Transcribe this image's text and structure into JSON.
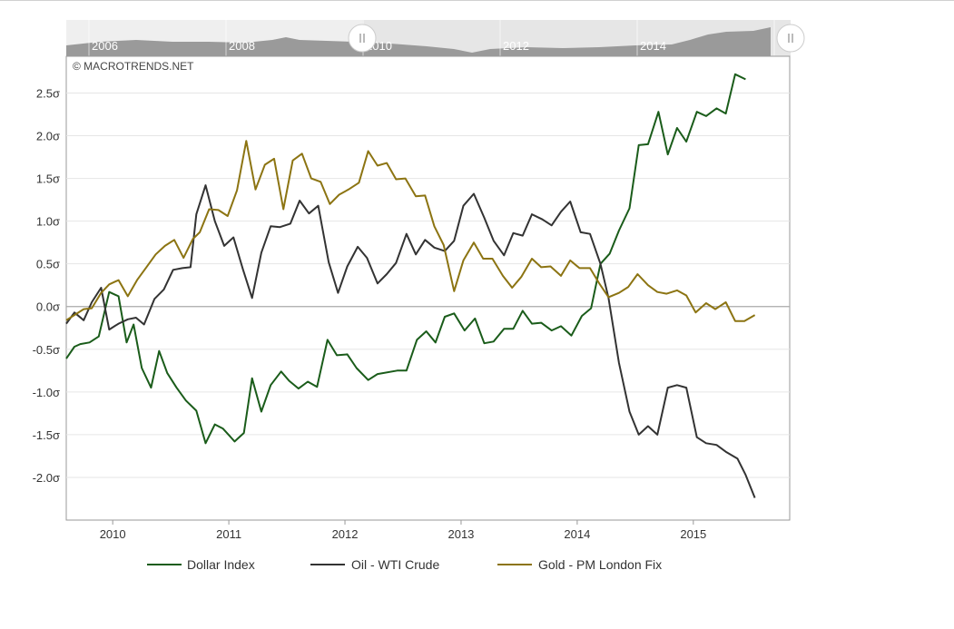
{
  "credit": "© MACROTRENDS.NET",
  "navigator": {
    "labels": [
      "2006",
      "2008",
      "2010",
      "2012",
      "2014"
    ],
    "handle_left_icon": "grip-icon",
    "handle_right_icon": "grip-icon"
  },
  "chart_data": {
    "type": "line",
    "x_tick_labels": [
      "2010",
      "2011",
      "2012",
      "2013",
      "2014",
      "2015"
    ],
    "x_ticks": [
      2010,
      2011,
      2012,
      2013,
      2014,
      2015
    ],
    "y_ticks": [
      2.5,
      2.0,
      1.5,
      1.0,
      0.5,
      0.0,
      -0.5,
      -1.0,
      -1.5,
      -2.0
    ],
    "y_tick_labels": [
      "2.5σ",
      "2.0σ",
      "1.5σ",
      "1.0σ",
      "0.5σ",
      "0.0σ",
      "-0.5σ",
      "-1.0σ",
      "-1.5σ",
      "-2.0σ"
    ],
    "xlim": [
      2009.6,
      2015.83
    ],
    "ylim": [
      -2.5,
      2.93
    ],
    "grid": true,
    "legend_position": "bottom",
    "series": [
      {
        "name": "Dollar Index",
        "color": "#1a5c1a",
        "points": [
          [
            2009.6,
            -0.61
          ],
          [
            2009.67,
            -0.47
          ],
          [
            2009.72,
            -0.44
          ],
          [
            2009.8,
            -0.42
          ],
          [
            2009.88,
            -0.35
          ],
          [
            2009.97,
            0.17
          ],
          [
            2010.05,
            0.12
          ],
          [
            2010.12,
            -0.42
          ],
          [
            2010.18,
            -0.21
          ],
          [
            2010.25,
            -0.72
          ],
          [
            2010.33,
            -0.95
          ],
          [
            2010.4,
            -0.52
          ],
          [
            2010.47,
            -0.78
          ],
          [
            2010.55,
            -0.95
          ],
          [
            2010.63,
            -1.1
          ],
          [
            2010.72,
            -1.22
          ],
          [
            2010.8,
            -1.6
          ],
          [
            2010.88,
            -1.38
          ],
          [
            2010.95,
            -1.43
          ],
          [
            2011.05,
            -1.58
          ],
          [
            2011.13,
            -1.48
          ],
          [
            2011.2,
            -0.84
          ],
          [
            2011.28,
            -1.23
          ],
          [
            2011.36,
            -0.92
          ],
          [
            2011.45,
            -0.76
          ],
          [
            2011.52,
            -0.87
          ],
          [
            2011.6,
            -0.96
          ],
          [
            2011.68,
            -0.88
          ],
          [
            2011.76,
            -0.94
          ],
          [
            2011.85,
            -0.39
          ],
          [
            2011.93,
            -0.57
          ],
          [
            2012.02,
            -0.56
          ],
          [
            2012.1,
            -0.72
          ],
          [
            2012.2,
            -0.86
          ],
          [
            2012.28,
            -0.79
          ],
          [
            2012.45,
            -0.75
          ],
          [
            2012.53,
            -0.75
          ],
          [
            2012.62,
            -0.39
          ],
          [
            2012.7,
            -0.29
          ],
          [
            2012.78,
            -0.42
          ],
          [
            2012.86,
            -0.12
          ],
          [
            2012.94,
            -0.08
          ],
          [
            2013.03,
            -0.28
          ],
          [
            2013.12,
            -0.14
          ],
          [
            2013.2,
            -0.43
          ],
          [
            2013.28,
            -0.41
          ],
          [
            2013.37,
            -0.26
          ],
          [
            2013.45,
            -0.26
          ],
          [
            2013.53,
            -0.05
          ],
          [
            2013.61,
            -0.2
          ],
          [
            2013.69,
            -0.19
          ],
          [
            2013.78,
            -0.28
          ],
          [
            2013.86,
            -0.23
          ],
          [
            2013.95,
            -0.34
          ],
          [
            2014.04,
            -0.11
          ],
          [
            2014.12,
            -0.02
          ],
          [
            2014.2,
            0.5
          ],
          [
            2014.28,
            0.62
          ],
          [
            2014.36,
            0.89
          ],
          [
            2014.45,
            1.15
          ],
          [
            2014.53,
            1.89
          ],
          [
            2014.61,
            1.9
          ],
          [
            2014.7,
            2.28
          ],
          [
            2014.78,
            1.78
          ],
          [
            2014.86,
            2.09
          ],
          [
            2014.94,
            1.93
          ],
          [
            2015.03,
            2.28
          ],
          [
            2015.11,
            2.23
          ],
          [
            2015.2,
            2.32
          ],
          [
            2015.28,
            2.26
          ],
          [
            2015.36,
            2.72
          ],
          [
            2015.45,
            2.66
          ]
        ]
      },
      {
        "name": "Oil - WTI Crude",
        "color": "#333333",
        "points": [
          [
            2009.6,
            -0.2
          ],
          [
            2009.67,
            -0.07
          ],
          [
            2009.75,
            -0.16
          ],
          [
            2009.82,
            0.05
          ],
          [
            2009.9,
            0.22
          ],
          [
            2009.97,
            -0.27
          ],
          [
            2010.05,
            -0.2
          ],
          [
            2010.13,
            -0.15
          ],
          [
            2010.2,
            -0.13
          ],
          [
            2010.27,
            -0.21
          ],
          [
            2010.36,
            0.09
          ],
          [
            2010.44,
            0.2
          ],
          [
            2010.52,
            0.43
          ],
          [
            2010.6,
            0.45
          ],
          [
            2010.67,
            0.46
          ],
          [
            2010.72,
            1.08
          ],
          [
            2010.8,
            1.42
          ],
          [
            2010.88,
            1.0
          ],
          [
            2010.96,
            0.71
          ],
          [
            2011.04,
            0.81
          ],
          [
            2011.12,
            0.44
          ],
          [
            2011.2,
            0.1
          ],
          [
            2011.28,
            0.63
          ],
          [
            2011.36,
            0.94
          ],
          [
            2011.44,
            0.93
          ],
          [
            2011.53,
            0.97
          ],
          [
            2011.61,
            1.24
          ],
          [
            2011.69,
            1.09
          ],
          [
            2011.77,
            1.18
          ],
          [
            2011.86,
            0.52
          ],
          [
            2011.94,
            0.16
          ],
          [
            2012.02,
            0.47
          ],
          [
            2012.11,
            0.7
          ],
          [
            2012.19,
            0.57
          ],
          [
            2012.28,
            0.27
          ],
          [
            2012.36,
            0.38
          ],
          [
            2012.44,
            0.51
          ],
          [
            2012.53,
            0.85
          ],
          [
            2012.61,
            0.61
          ],
          [
            2012.69,
            0.78
          ],
          [
            2012.77,
            0.69
          ],
          [
            2012.86,
            0.65
          ],
          [
            2012.94,
            0.77
          ],
          [
            2013.02,
            1.18
          ],
          [
            2013.11,
            1.32
          ],
          [
            2013.2,
            1.04
          ],
          [
            2013.28,
            0.77
          ],
          [
            2013.37,
            0.6
          ],
          [
            2013.45,
            0.86
          ],
          [
            2013.53,
            0.83
          ],
          [
            2013.61,
            1.08
          ],
          [
            2013.7,
            1.02
          ],
          [
            2013.78,
            0.95
          ],
          [
            2013.86,
            1.11
          ],
          [
            2013.94,
            1.23
          ],
          [
            2014.03,
            0.87
          ],
          [
            2014.11,
            0.85
          ],
          [
            2014.2,
            0.5
          ],
          [
            2014.27,
            0.1
          ],
          [
            2014.36,
            -0.66
          ],
          [
            2014.45,
            -1.23
          ],
          [
            2014.53,
            -1.5
          ],
          [
            2014.61,
            -1.4
          ],
          [
            2014.69,
            -1.5
          ],
          [
            2014.78,
            -0.95
          ],
          [
            2014.86,
            -0.92
          ],
          [
            2014.94,
            -0.95
          ],
          [
            2015.03,
            -1.53
          ],
          [
            2015.11,
            -1.6
          ],
          [
            2015.2,
            -1.62
          ],
          [
            2015.28,
            -1.7
          ],
          [
            2015.38,
            -1.78
          ],
          [
            2015.45,
            -1.97
          ],
          [
            2015.53,
            -2.24
          ]
        ]
      },
      {
        "name": "Gold - PM London Fix",
        "color": "#8c7412",
        "points": [
          [
            2009.6,
            -0.16
          ],
          [
            2009.67,
            -0.1
          ],
          [
            2009.75,
            -0.03
          ],
          [
            2009.82,
            -0.02
          ],
          [
            2009.9,
            0.16
          ],
          [
            2009.97,
            0.26
          ],
          [
            2010.05,
            0.31
          ],
          [
            2010.13,
            0.12
          ],
          [
            2010.21,
            0.31
          ],
          [
            2010.29,
            0.46
          ],
          [
            2010.37,
            0.61
          ],
          [
            2010.45,
            0.71
          ],
          [
            2010.53,
            0.78
          ],
          [
            2010.61,
            0.57
          ],
          [
            2010.69,
            0.79
          ],
          [
            2010.75,
            0.87
          ],
          [
            2010.83,
            1.14
          ],
          [
            2010.91,
            1.13
          ],
          [
            2010.99,
            1.06
          ],
          [
            2011.07,
            1.36
          ],
          [
            2011.15,
            1.94
          ],
          [
            2011.23,
            1.37
          ],
          [
            2011.31,
            1.66
          ],
          [
            2011.39,
            1.73
          ],
          [
            2011.47,
            1.14
          ],
          [
            2011.55,
            1.71
          ],
          [
            2011.63,
            1.79
          ],
          [
            2011.71,
            1.5
          ],
          [
            2011.79,
            1.46
          ],
          [
            2011.87,
            1.2
          ],
          [
            2011.95,
            1.31
          ],
          [
            2012.03,
            1.37
          ],
          [
            2012.12,
            1.45
          ],
          [
            2012.2,
            1.82
          ],
          [
            2012.28,
            1.65
          ],
          [
            2012.36,
            1.68
          ],
          [
            2012.44,
            1.49
          ],
          [
            2012.52,
            1.5
          ],
          [
            2012.61,
            1.29
          ],
          [
            2012.69,
            1.3
          ],
          [
            2012.77,
            0.94
          ],
          [
            2012.85,
            0.72
          ],
          [
            2012.94,
            0.18
          ],
          [
            2013.02,
            0.54
          ],
          [
            2013.11,
            0.75
          ],
          [
            2013.19,
            0.56
          ],
          [
            2013.27,
            0.56
          ],
          [
            2013.36,
            0.36
          ],
          [
            2013.44,
            0.22
          ],
          [
            2013.52,
            0.35
          ],
          [
            2013.61,
            0.56
          ],
          [
            2013.69,
            0.46
          ],
          [
            2013.77,
            0.47
          ],
          [
            2013.86,
            0.36
          ],
          [
            2013.94,
            0.54
          ],
          [
            2014.02,
            0.45
          ],
          [
            2014.11,
            0.45
          ],
          [
            2014.19,
            0.27
          ],
          [
            2014.27,
            0.11
          ],
          [
            2014.36,
            0.16
          ],
          [
            2014.44,
            0.23
          ],
          [
            2014.52,
            0.38
          ],
          [
            2014.61,
            0.25
          ],
          [
            2014.69,
            0.17
          ],
          [
            2014.77,
            0.15
          ],
          [
            2014.86,
            0.19
          ],
          [
            2014.94,
            0.13
          ],
          [
            2015.02,
            -0.07
          ],
          [
            2015.11,
            0.04
          ],
          [
            2015.19,
            -0.03
          ],
          [
            2015.28,
            0.05
          ],
          [
            2015.36,
            -0.17
          ],
          [
            2015.44,
            -0.17
          ],
          [
            2015.53,
            -0.1
          ]
        ]
      }
    ]
  }
}
